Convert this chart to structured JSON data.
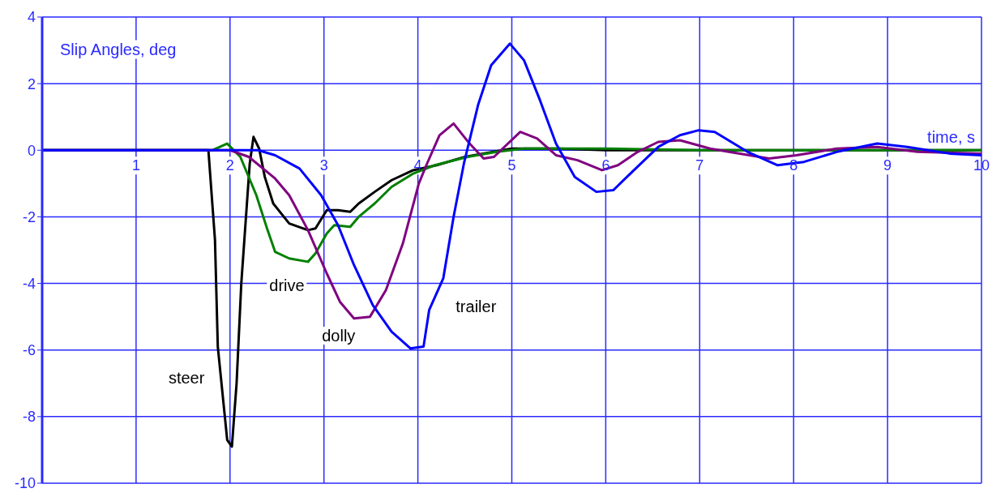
{
  "chart_data": {
    "type": "line",
    "xlabel": "time, s",
    "ylabel": "Slip Angles, deg",
    "xlim": [
      0,
      10
    ],
    "xticks": [
      1,
      2,
      3,
      4,
      5,
      6,
      7,
      8,
      9,
      10
    ],
    "ylim": [
      -10,
      4
    ],
    "yticks": [
      -10,
      -8,
      -6,
      -4,
      -2,
      0,
      2,
      4
    ],
    "grid": true,
    "series": [
      {
        "name": "steer",
        "color": "#000000",
        "x": [
          0,
          1.77,
          1.84,
          1.87,
          1.97,
          2.02,
          2.07,
          2.12,
          2.16,
          2.21,
          2.25,
          2.31,
          2.37,
          2.46,
          2.63,
          2.83,
          2.91,
          3.03,
          3.15,
          3.28,
          3.37,
          3.54,
          3.72,
          3.95,
          4.2,
          4.5,
          5.0,
          5.5,
          6.0,
          10
        ],
        "values": [
          0,
          0,
          -2.7,
          -5.9,
          -8.7,
          -8.9,
          -7.0,
          -4.0,
          -2.4,
          -0.4,
          0.4,
          0.05,
          -0.8,
          -1.6,
          -2.2,
          -2.4,
          -2.35,
          -1.8,
          -1.8,
          -1.85,
          -1.6,
          -1.25,
          -0.9,
          -0.6,
          -0.45,
          -0.2,
          0.05,
          0.05,
          0,
          0
        ]
      },
      {
        "name": "drive",
        "color": "#008000",
        "x": [
          0,
          1.81,
          1.97,
          2.11,
          2.28,
          2.4,
          2.48,
          2.63,
          2.83,
          2.91,
          3.03,
          3.11,
          3.28,
          3.37,
          3.54,
          3.72,
          3.95,
          4.18,
          4.53,
          4.84,
          5.13,
          6.0,
          7.0,
          10
        ],
        "values": [
          0,
          0,
          0.2,
          -0.2,
          -1.35,
          -2.4,
          -3.05,
          -3.25,
          -3.35,
          -3.1,
          -2.5,
          -2.25,
          -2.3,
          -2.0,
          -1.6,
          -1.1,
          -0.7,
          -0.45,
          -0.2,
          -0.05,
          0.05,
          0.05,
          0,
          0
        ]
      },
      {
        "name": "dolly",
        "color": "#800080",
        "x": [
          0,
          2.0,
          2.2,
          2.48,
          2.63,
          2.83,
          3.03,
          3.17,
          3.32,
          3.49,
          3.66,
          3.84,
          4.01,
          4.09,
          4.23,
          4.38,
          4.55,
          4.7,
          4.81,
          5.09,
          5.27,
          5.47,
          5.7,
          5.96,
          6.13,
          6.34,
          6.56,
          6.79,
          7.11,
          7.31,
          7.74,
          8.03,
          8.46,
          8.89,
          9.32,
          10
        ],
        "values": [
          0,
          0,
          -0.2,
          -0.85,
          -1.35,
          -2.4,
          -3.7,
          -4.55,
          -5.05,
          -5.0,
          -4.2,
          -2.8,
          -1.0,
          -0.45,
          0.45,
          0.8,
          0.2,
          -0.25,
          -0.2,
          0.55,
          0.35,
          -0.15,
          -0.3,
          -0.6,
          -0.45,
          -0.05,
          0.25,
          0.3,
          0.05,
          -0.05,
          -0.25,
          -0.15,
          0.05,
          0.1,
          -0.05,
          -0.1
        ]
      },
      {
        "name": "trailer",
        "color": "#0000ff",
        "x": [
          0,
          2.3,
          2.48,
          2.74,
          2.97,
          3.15,
          3.32,
          3.52,
          3.72,
          3.92,
          4.06,
          4.12,
          4.27,
          4.38,
          4.49,
          4.64,
          4.78,
          4.98,
          5.13,
          5.3,
          5.47,
          5.67,
          5.9,
          6.08,
          6.3,
          6.56,
          6.79,
          6.99,
          7.16,
          7.51,
          7.83,
          8.11,
          8.46,
          8.89,
          9.21,
          9.66,
          10
        ],
        "values": [
          0,
          0,
          -0.15,
          -0.55,
          -1.35,
          -2.25,
          -3.45,
          -4.65,
          -5.45,
          -5.95,
          -5.9,
          -4.8,
          -3.85,
          -2.0,
          -0.4,
          1.35,
          2.55,
          3.2,
          2.7,
          1.5,
          0.2,
          -0.8,
          -1.25,
          -1.2,
          -0.6,
          0.1,
          0.45,
          0.6,
          0.55,
          -0.05,
          -0.45,
          -0.35,
          -0.05,
          0.2,
          0.1,
          -0.1,
          -0.15
        ]
      }
    ]
  }
}
